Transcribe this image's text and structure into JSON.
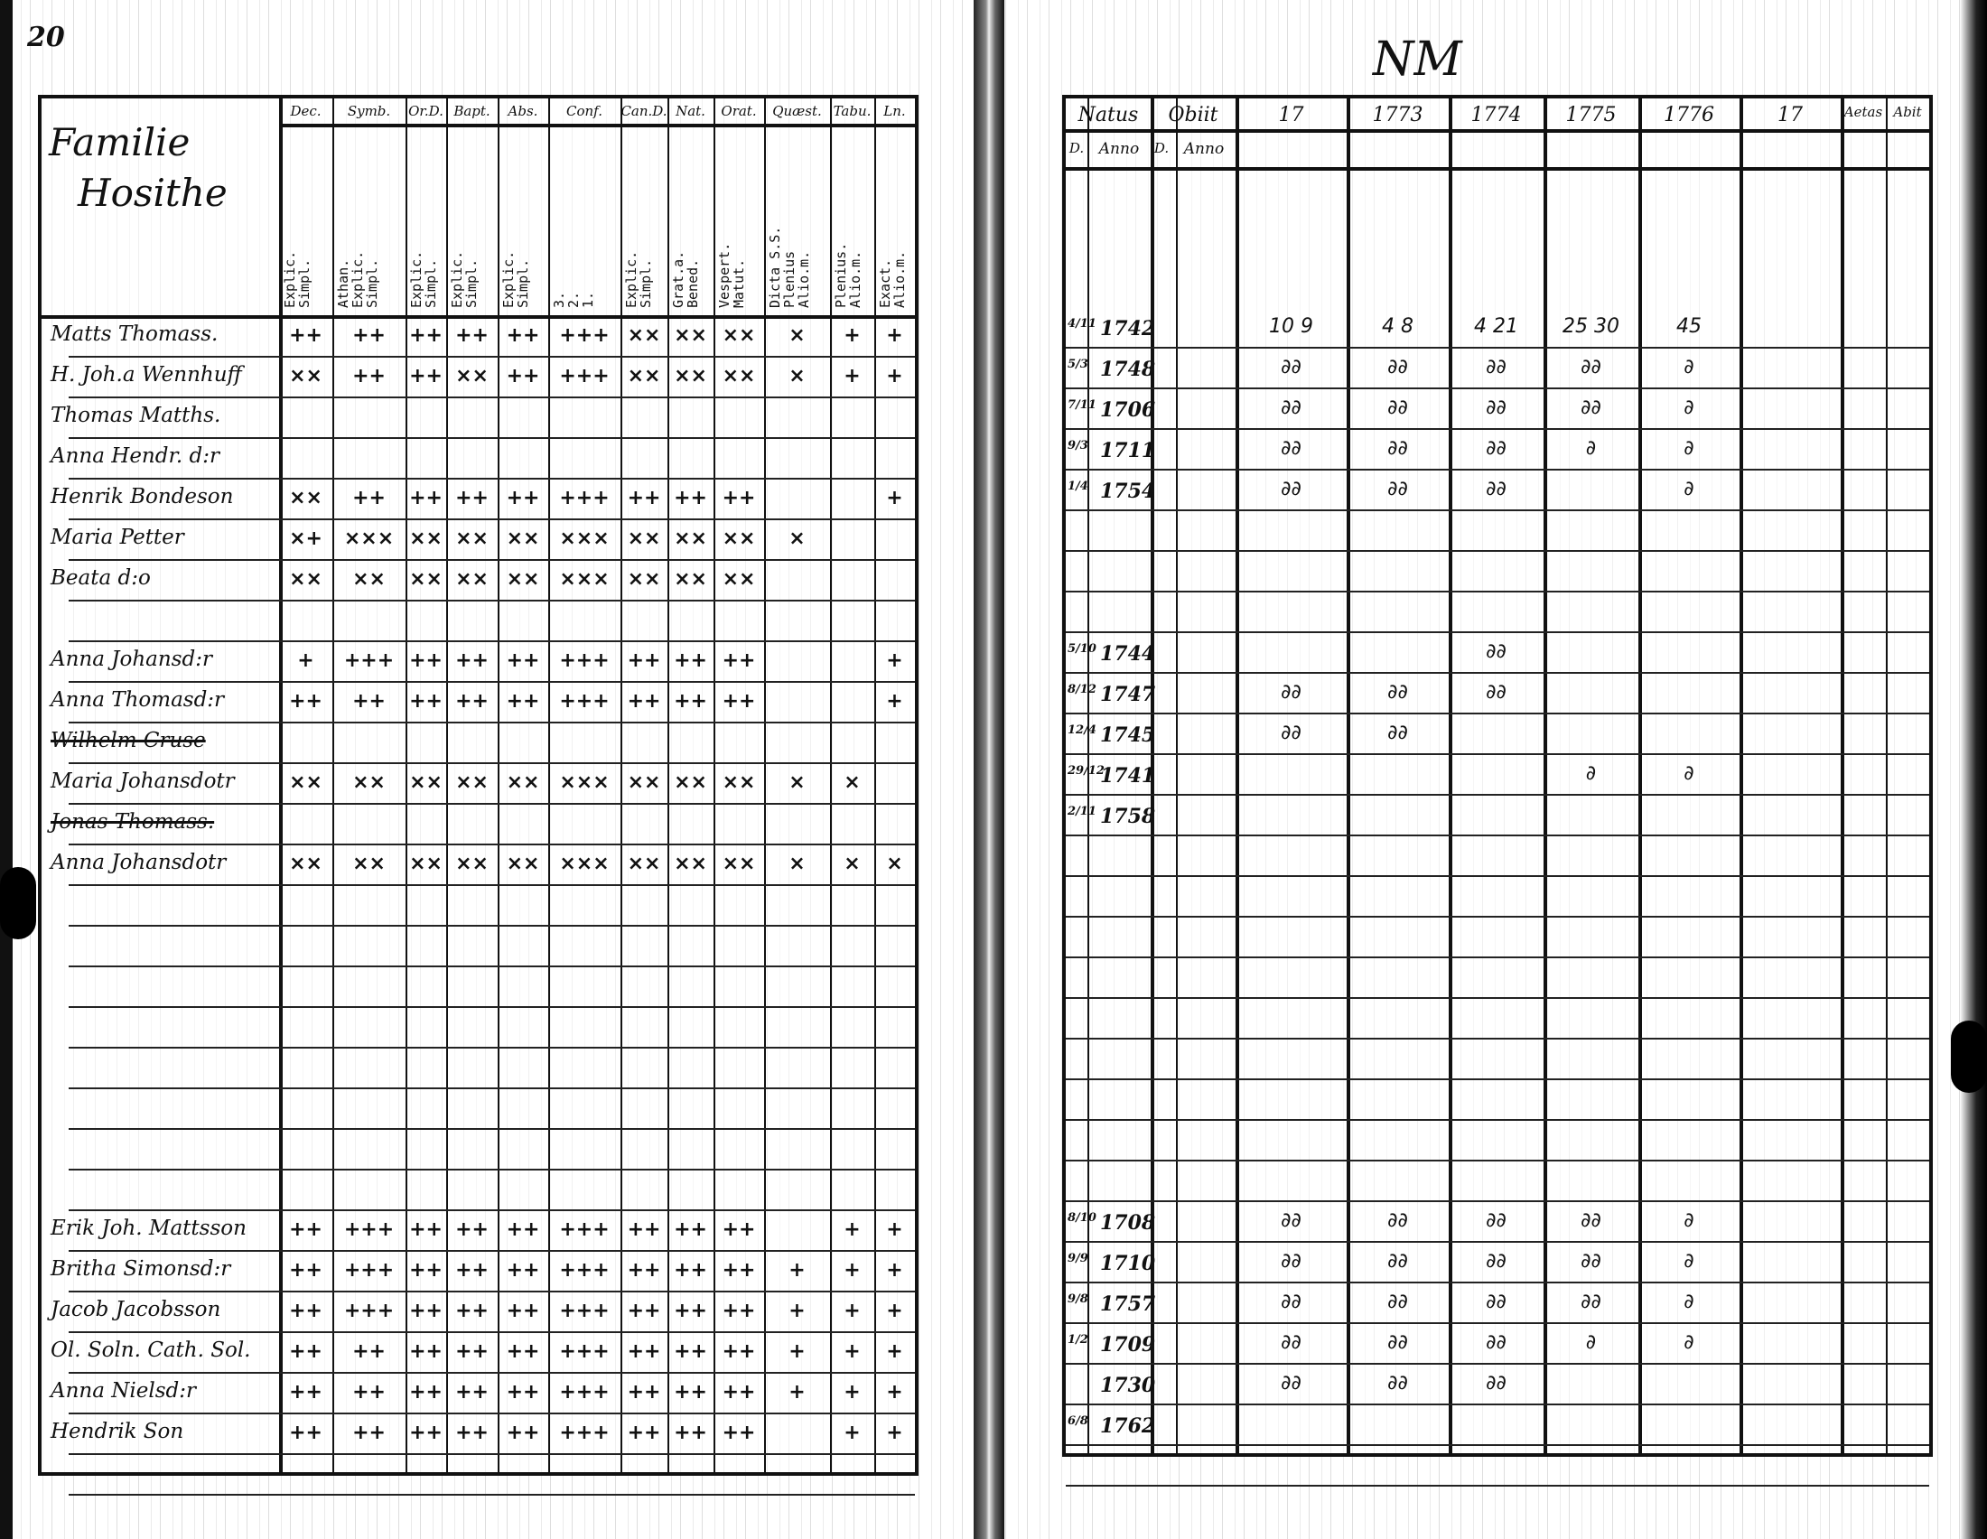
{
  "document": {
    "left_page": {
      "page_number": "20",
      "name_header": [
        "Familie",
        "Hosithe"
      ],
      "columns": [
        {
          "header": "Dec.",
          "sub": "Explic.\nSimpl."
        },
        {
          "header": "Symb.",
          "sub": "Athan.\nExplic.\nSimpl."
        },
        {
          "header": "Or.D.",
          "sub": "Explic.\nSimpl."
        },
        {
          "header": "Bapt.",
          "sub": "Explic.\nSimpl."
        },
        {
          "header": "Abs.",
          "sub": "Explic.\nSimpl."
        },
        {
          "header": "Conf.",
          "sub": "3.\n2.\n1."
        },
        {
          "header": "Can.D.",
          "sub": "Explic.\nSimpl."
        },
        {
          "header": "Nat.",
          "sub": "Grat.a.\nBened."
        },
        {
          "header": "Orat.",
          "sub": "Vespert.\nMatut."
        },
        {
          "header": "Quæst.",
          "sub": "Dicta S.S.\nPlenius\nAlio.m."
        },
        {
          "header": "Tabu.",
          "sub": "Plenius.\nAlio.m."
        },
        {
          "header": "Ln.",
          "sub": "Exact.\nAlio.m."
        }
      ],
      "rows": [
        {
          "row": 1,
          "name": "Matts Thomass.",
          "marks": [
            "++",
            "++",
            "++",
            "++",
            "++",
            "+++",
            "××",
            "××",
            "××",
            "×",
            "+",
            "+"
          ]
        },
        {
          "row": 2,
          "name": "H. Joh.a Wennhuff",
          "marks": [
            "××",
            "++",
            "++",
            "××",
            "++",
            "+++",
            "××",
            "××",
            "××",
            "×",
            "+",
            "+"
          ]
        },
        {
          "row": 3,
          "name": "Thomas Matths.",
          "marks": [
            "",
            "",
            "",
            "",
            "",
            "",
            "",
            "",
            "",
            "",
            "",
            ""
          ]
        },
        {
          "row": 4,
          "name": "Anna Hendr. d:r",
          "marks": [
            "",
            "",
            "",
            "",
            "",
            "",
            "",
            "",
            "",
            "",
            "",
            ""
          ]
        },
        {
          "row": 5,
          "name": "Henrik Bondeson",
          "marks": [
            "××",
            "++",
            "++",
            "++",
            "++",
            "+++",
            "++",
            "++",
            "++",
            "",
            "",
            "+"
          ]
        },
        {
          "row": 6,
          "name": "Maria Petter",
          "marks": [
            "×+",
            "×××",
            "××",
            "××",
            "××",
            "×××",
            "××",
            "××",
            "××",
            "×",
            "",
            ""
          ]
        },
        {
          "row": 7,
          "name": "Beata d:o",
          "marks": [
            "××",
            "××",
            "××",
            "××",
            "××",
            "×××",
            "××",
            "××",
            "××",
            "",
            "",
            ""
          ]
        },
        {
          "row": 9,
          "name": "Anna Johansd:r",
          "marks": [
            "+",
            "+++",
            "++",
            "++",
            "++",
            "+++",
            "++",
            "++",
            "++",
            "",
            "",
            "+"
          ]
        },
        {
          "row": 10,
          "name": "Anna Thomasd:r",
          "marks": [
            "++",
            "++",
            "++",
            "++",
            "++",
            "+++",
            "++",
            "++",
            "++",
            "",
            "",
            "+"
          ]
        },
        {
          "row": 11,
          "name": "Wilhelm Cruse",
          "struck": true,
          "marks": [
            "",
            "",
            "",
            "",
            "",
            "",
            "",
            "",
            "",
            "",
            "",
            ""
          ]
        },
        {
          "row": 12,
          "name": "Maria Johansdotr",
          "marks": [
            "××",
            "××",
            "××",
            "××",
            "××",
            "×××",
            "××",
            "××",
            "××",
            "×",
            "×",
            ""
          ]
        },
        {
          "row": 13,
          "name": "Jonas Thomass.",
          "struck": true,
          "marks": [
            "",
            "",
            "",
            "",
            "",
            "",
            "",
            "",
            "",
            "",
            "",
            ""
          ]
        },
        {
          "row": 14,
          "name": "Anna Johansdotr",
          "marks": [
            "××",
            "××",
            "××",
            "××",
            "××",
            "×××",
            "××",
            "××",
            "××",
            "×",
            "×",
            "×"
          ]
        },
        {
          "row": 23,
          "name": "Erik Joh. Mattsson",
          "marks": [
            "++",
            "+++",
            "++",
            "++",
            "++",
            "+++",
            "++",
            "++",
            "++",
            "",
            "+",
            "+"
          ]
        },
        {
          "row": 24,
          "name": "Britha Simonsd:r",
          "marks": [
            "++",
            "+++",
            "++",
            "++",
            "++",
            "+++",
            "++",
            "++",
            "++",
            "+",
            "+",
            "+"
          ]
        },
        {
          "row": 25,
          "name": "Jacob Jacobsson",
          "marks": [
            "++",
            "+++",
            "++",
            "++",
            "++",
            "+++",
            "++",
            "++",
            "++",
            "+",
            "+",
            "+"
          ]
        },
        {
          "row": 26,
          "name": "Ol. Soln. Cath. Sol.",
          "marks": [
            "++",
            "++",
            "++",
            "++",
            "++",
            "+++",
            "++",
            "++",
            "++",
            "+",
            "+",
            "+"
          ]
        },
        {
          "row": 27,
          "name": "Anna Nielsd:r",
          "marks": [
            "++",
            "++",
            "++",
            "++",
            "++",
            "+++",
            "++",
            "++",
            "++",
            "+",
            "+",
            "+"
          ]
        },
        {
          "row": 28,
          "name": "Hendrik Son",
          "marks": [
            "++",
            "++",
            "++",
            "++",
            "++",
            "+++",
            "++",
            "++",
            "++",
            "",
            "+",
            "+"
          ]
        }
      ]
    },
    "right_page": {
      "page_number": "NM",
      "columns": [
        {
          "header": "Natus",
          "sub": [
            "D.",
            "Anno"
          ]
        },
        {
          "header": "Obiit",
          "sub": [
            "D.",
            "Anno"
          ]
        },
        {
          "header": "17"
        },
        {
          "header": "1773"
        },
        {
          "header": "1774"
        },
        {
          "header": "1775"
        },
        {
          "header": "1776"
        },
        {
          "header": "17"
        },
        {
          "header": "Aetas"
        },
        {
          "header": "Abit"
        }
      ],
      "rows": [
        {
          "row": 1,
          "day": "4/11",
          "year": "1742",
          "marks": [
            "10 9",
            "4 8",
            "4 21",
            "25 30",
            "45",
            "",
            "",
            ""
          ]
        },
        {
          "row": 2,
          "day": "5/3",
          "year": "1748",
          "marks": [
            "∂∂",
            "∂∂",
            "∂∂",
            "∂∂",
            "∂",
            "",
            "",
            ""
          ]
        },
        {
          "row": 3,
          "day": "7/11",
          "year": "1706",
          "marks": [
            "∂∂",
            "∂∂",
            "∂∂",
            "∂∂",
            "∂",
            "",
            "",
            ""
          ]
        },
        {
          "row": 4,
          "day": "9/3",
          "year": "1711",
          "marks": [
            "∂∂",
            "∂∂",
            "∂∂",
            "∂",
            "∂",
            "",
            "",
            ""
          ]
        },
        {
          "row": 5,
          "day": "1/4",
          "year": "1754",
          "marks": [
            "∂∂",
            "∂∂",
            "∂∂",
            "",
            "∂",
            "",
            "",
            ""
          ]
        },
        {
          "row": 9,
          "day": "5/10",
          "year": "1744",
          "marks": [
            "",
            "",
            "∂∂",
            "",
            "",
            "",
            "",
            ""
          ]
        },
        {
          "row": 10,
          "day": "8/12",
          "year": "1747",
          "marks": [
            "∂∂",
            "∂∂",
            "∂∂",
            "",
            "",
            "",
            "",
            ""
          ]
        },
        {
          "row": 11,
          "day": "12/4",
          "year": "1745",
          "marks": [
            "∂∂",
            "∂∂",
            "",
            "",
            "",
            "",
            "",
            ""
          ]
        },
        {
          "row": 12,
          "day": "29/12",
          "year": "1741",
          "marks": [
            "",
            "",
            "",
            "∂",
            "∂",
            "",
            "",
            ""
          ]
        },
        {
          "row": 13,
          "day": "2/11",
          "year": "1758",
          "marks": [
            "",
            "",
            "",
            "",
            "",
            "",
            "",
            ""
          ]
        },
        {
          "row": 23,
          "day": "8/10",
          "year": "1708",
          "marks": [
            "∂∂",
            "∂∂",
            "∂∂",
            "∂∂",
            "∂",
            "",
            "",
            ""
          ]
        },
        {
          "row": 24,
          "day": "9/9",
          "year": "1710",
          "marks": [
            "∂∂",
            "∂∂",
            "∂∂",
            "∂∂",
            "∂",
            "",
            "",
            ""
          ]
        },
        {
          "row": 25,
          "day": "9/8",
          "year": "1757",
          "marks": [
            "∂∂",
            "∂∂",
            "∂∂",
            "∂∂",
            "∂",
            "",
            "",
            ""
          ]
        },
        {
          "row": 26,
          "day": "1/2",
          "year": "1709",
          "marks": [
            "∂∂",
            "∂∂",
            "∂∂",
            "∂",
            "∂",
            "",
            "",
            ""
          ]
        },
        {
          "row": 27,
          "day": "",
          "year": "1730",
          "marks": [
            "∂∂",
            "∂∂",
            "∂∂",
            "",
            "",
            "",
            "",
            ""
          ]
        },
        {
          "row": 28,
          "day": "6/8",
          "year": "1762",
          "marks": [
            "",
            "",
            "",
            "",
            "",
            "",
            "",
            ""
          ]
        }
      ]
    },
    "colors": {
      "ink": "#111111",
      "paper": "#ffffff"
    }
  }
}
